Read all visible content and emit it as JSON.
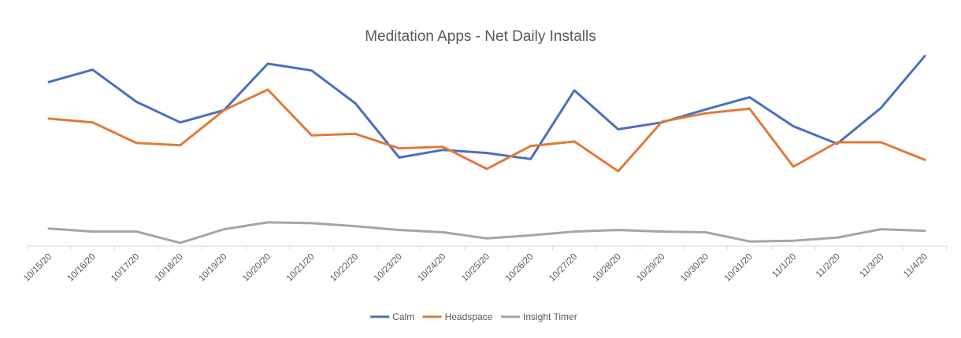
{
  "chart_data": {
    "type": "line",
    "title": "Meditation Apps - Net Daily Installs",
    "xlabel": "",
    "ylabel": "",
    "categories": [
      "10/15/20",
      "10/16/20",
      "10/17/20",
      "10/18/20",
      "10/19/20",
      "10/20/20",
      "10/21/20",
      "10/22/20",
      "10/23/20",
      "10/24/20",
      "10/25/20",
      "10/26/20",
      "10/27/20",
      "10/28/20",
      "10/29/20",
      "10/30/20",
      "10/31/20",
      "11/1/20",
      "11/2/20",
      "11/3/20",
      "11/4/20"
    ],
    "ylim": [
      0,
      240
    ],
    "y_axis_shown": false,
    "grid": false,
    "legend_position": "bottom",
    "series": [
      {
        "name": "Calm",
        "color": "#4A6FBF",
        "values": [
          215,
          231,
          189,
          162,
          178,
          239,
          230,
          187,
          116,
          126,
          122,
          114,
          204,
          153,
          162,
          179,
          195,
          157,
          134,
          181,
          249
        ]
      },
      {
        "name": "Headspace",
        "color": "#E07B39",
        "values": [
          167,
          162,
          135,
          132,
          178,
          205,
          145,
          147,
          128,
          130,
          101,
          131,
          137,
          98,
          163,
          174,
          180,
          104,
          136,
          136,
          113
        ]
      },
      {
        "name": "Insight Timer",
        "color": "#A5A5A5",
        "values": [
          23,
          19,
          19,
          4,
          22,
          31,
          30,
          26,
          21,
          18,
          10,
          14,
          19,
          21,
          19,
          18,
          6,
          7,
          11,
          22,
          20
        ]
      }
    ]
  }
}
